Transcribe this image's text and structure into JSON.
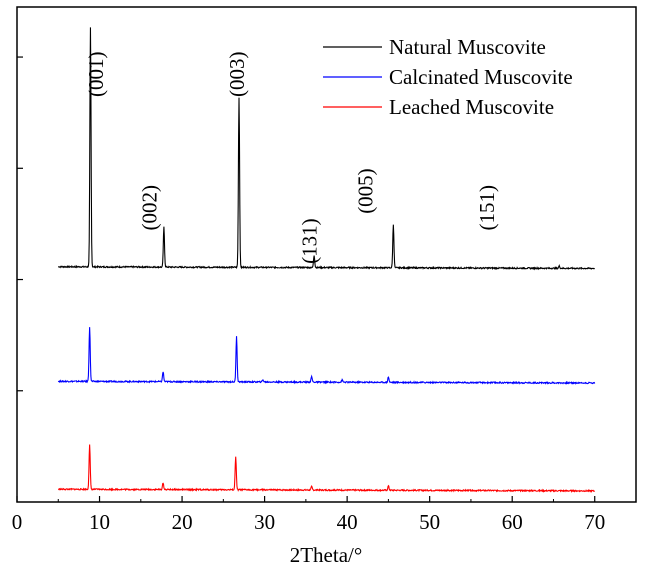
{
  "chart_data": {
    "type": "line",
    "title": "",
    "xlabel": "2Theta/°",
    "ylabel": "",
    "xlim": [
      0,
      75
    ],
    "x_ticks": [
      "0",
      "10",
      "20",
      "30",
      "40",
      "50",
      "60",
      "70"
    ],
    "grid": false,
    "legend_position": "top-right",
    "series": [
      {
        "name": "Natural Muscovite",
        "color": "#000000",
        "offset": 2.1,
        "peaks": [
          [
            8.9,
            2.15
          ],
          [
            17.8,
            0.36
          ],
          [
            26.9,
            1.53
          ],
          [
            36.0,
            0.11
          ],
          [
            45.6,
            0.39
          ],
          [
            65.7,
            0.02
          ]
        ]
      },
      {
        "name": "Calcinated Muscovite",
        "color": "#0000ff",
        "offset": 1.07,
        "peaks": [
          [
            8.8,
            0.49
          ],
          [
            17.7,
            0.09
          ],
          [
            26.6,
            0.41
          ],
          [
            29.8,
            0.02
          ],
          [
            35.7,
            0.05
          ],
          [
            39.4,
            0.02
          ],
          [
            45.0,
            0.05
          ]
        ]
      },
      {
        "name": "Leached Muscovite",
        "color": "#ff0000",
        "offset": 0.1,
        "peaks": [
          [
            8.8,
            0.4
          ],
          [
            17.7,
            0.06
          ],
          [
            26.5,
            0.3
          ],
          [
            35.7,
            0.03
          ],
          [
            45.0,
            0.04
          ]
        ]
      }
    ],
    "annotations": [
      {
        "text": "(001)",
        "x": 10.4,
        "y": 4.05
      },
      {
        "text": "(002)",
        "x": 16.9,
        "y": 2.85
      },
      {
        "text": "(003)",
        "x": 27.5,
        "y": 4.05
      },
      {
        "text": "(131)",
        "x": 36.3,
        "y": 2.55
      },
      {
        "text": "(005)",
        "x": 43.1,
        "y": 3.0
      },
      {
        "text": "(151)",
        "x": 57.8,
        "y": 2.85
      }
    ]
  }
}
